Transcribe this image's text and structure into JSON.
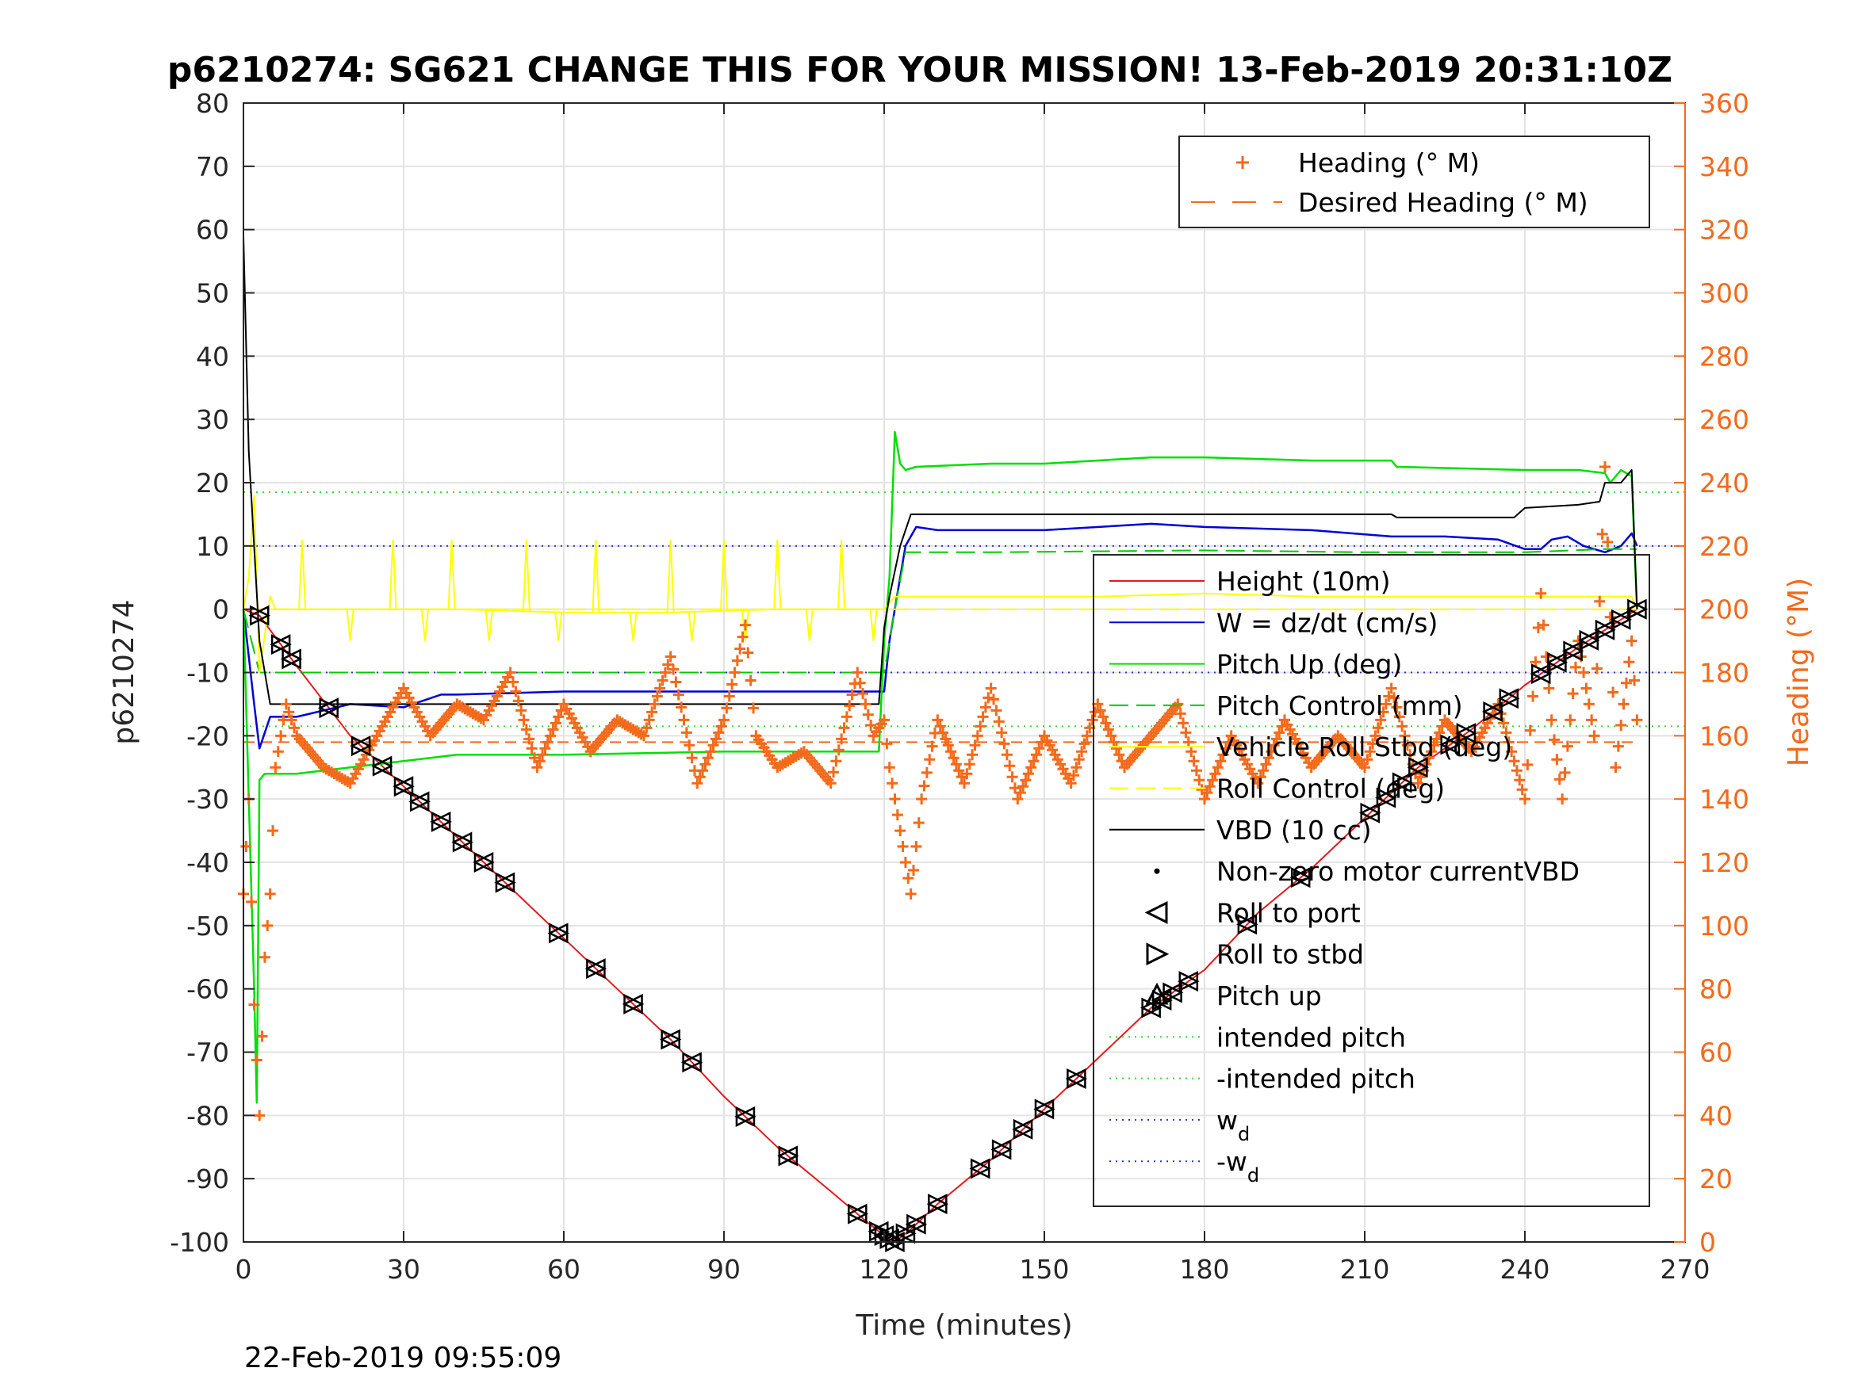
{
  "chart_data": {
    "type": "line",
    "title": "p6210274: SG621 CHANGE THIS FOR YOUR MISSION! 13-Feb-2019 20:31:10Z",
    "xlabel": "Time (minutes)",
    "ylabel_left": "p6210274",
    "ylabel_right": "Heading (°M)",
    "footer": "22-Feb-2019 09:55:09",
    "xlim": [
      0,
      270
    ],
    "ylim_left": [
      -100,
      80
    ],
    "ylim_right": [
      0,
      360
    ],
    "xticks": [
      0,
      30,
      60,
      90,
      120,
      150,
      180,
      210,
      240,
      270
    ],
    "yticks_left": [
      80,
      70,
      60,
      50,
      40,
      30,
      20,
      10,
      0,
      -10,
      -20,
      -30,
      -40,
      -50,
      -60,
      -70,
      -80,
      -90,
      -100
    ],
    "yticks_right": [
      360,
      340,
      320,
      300,
      280,
      260,
      240,
      220,
      200,
      180,
      160,
      140,
      120,
      100,
      80,
      60,
      40,
      20,
      0
    ],
    "grid": true,
    "colors": {
      "height": "#e41a1c",
      "w": "#0000d8",
      "pitch": "#00e000",
      "pitch_control": "#00cc00",
      "roll": "#ffff00",
      "vbd": "#000000",
      "heading": "#f26a1b",
      "intended": "#33dd33",
      "wd": "#3333cc"
    },
    "legend_top_right": [
      {
        "label": "Heading (° M)",
        "style": "plus",
        "color": "#f26a1b"
      },
      {
        "label": "Desired Heading (° M)",
        "style": "dash",
        "color": "#f26a1b"
      }
    ],
    "legend_main": [
      {
        "label": "Height (10m)",
        "style": "line",
        "color": "#e41a1c"
      },
      {
        "label": "W = dz/dt (cm/s)",
        "style": "line",
        "color": "#0000d8"
      },
      {
        "label": "Pitch Up (deg)",
        "style": "line",
        "color": "#00e000"
      },
      {
        "label": "Pitch Control (mm)",
        "style": "dashline",
        "color": "#00cc00"
      },
      {
        "label": "Vehicle Roll Stbd (deg)",
        "style": "line",
        "color": "#ffff00"
      },
      {
        "label": "Roll Control (deg)",
        "style": "dashline",
        "color": "#ffff00"
      },
      {
        "label": "VBD (10 cc)",
        "style": "line",
        "color": "#000000"
      },
      {
        "label": "Non-zero motor currentVBD",
        "style": "dot",
        "color": "#000000"
      },
      {
        "label": "Roll to port",
        "style": "tri-left",
        "color": "#000000"
      },
      {
        "label": "Roll to stbd",
        "style": "tri-right",
        "color": "#000000"
      },
      {
        "label": "Pitch up",
        "style": "tri-up",
        "color": "#000000"
      },
      {
        "label": "intended pitch",
        "style": "dotted",
        "color": "#33dd33"
      },
      {
        "label": "-intended pitch",
        "style": "dotted",
        "color": "#33dd33"
      },
      {
        "label": "w",
        "sub": "d",
        "style": "dotted",
        "color": "#3333cc"
      },
      {
        "label": "-w",
        "sub": "d",
        "style": "dotted",
        "color": "#3333cc"
      }
    ],
    "reference_lines": {
      "intended_pitch": 18.5,
      "neg_intended_pitch": -18.5,
      "w_d": 10,
      "neg_w_d": -10,
      "desired_heading_left_units": -21
    },
    "series": [
      {
        "name": "Height (10m)",
        "x": [
          0,
          3,
          10,
          20,
          30,
          40,
          50,
          60,
          70,
          80,
          90,
          100,
          110,
          117,
          120,
          122,
          125,
          130,
          140,
          150,
          160,
          170,
          180,
          190,
          200,
          210,
          220,
          230,
          240,
          250,
          261
        ],
        "y": [
          0,
          -1,
          -9,
          -20,
          -28,
          -36,
          -44,
          -52,
          -60,
          -68,
          -77,
          -85,
          -92,
          -97,
          -99,
          -100,
          -98,
          -94,
          -87,
          -79,
          -71,
          -63,
          -57,
          -48,
          -41,
          -33,
          -25,
          -19,
          -12,
          -6,
          0
        ]
      },
      {
        "name": "W = dz/dt (cm/s)",
        "x": [
          0,
          2,
          3,
          5,
          10,
          20,
          30,
          37,
          40,
          60,
          90,
          120,
          121,
          124,
          126,
          130,
          150,
          170,
          180,
          200,
          215,
          225,
          235,
          240,
          243,
          245,
          248,
          251,
          255,
          258,
          260,
          261
        ],
        "y": [
          0,
          -15,
          -22,
          -17,
          -17,
          -15,
          -15.5,
          -13.5,
          -13.5,
          -13,
          -13,
          -13,
          -5,
          10,
          13,
          12.5,
          12.5,
          13.5,
          13,
          12.5,
          11.5,
          11.5,
          11,
          9.5,
          9.5,
          11,
          11.5,
          10,
          9,
          10,
          12,
          10
        ]
      },
      {
        "name": "Pitch Up (deg)",
        "x": [
          0,
          2,
          2.5,
          3,
          4,
          10,
          20,
          30,
          40,
          60,
          90,
          119,
          120,
          121,
          122,
          123,
          124,
          126,
          140,
          150,
          170,
          180,
          200,
          215,
          216,
          240,
          250,
          255,
          256,
          258,
          260,
          261
        ],
        "y": [
          0,
          -60,
          -78,
          -27,
          -26,
          -26,
          -25,
          -24,
          -23,
          -23,
          -22.5,
          -22.5,
          -5,
          5,
          28,
          23,
          22,
          22.5,
          23,
          23,
          24,
          24,
          23.5,
          23.5,
          22.5,
          22,
          22,
          21.5,
          20,
          22,
          21,
          0
        ]
      },
      {
        "name": "Pitch Control (mm)",
        "x": [
          0,
          3,
          120,
          122,
          124,
          140,
          180,
          210,
          240,
          255,
          261
        ],
        "y": [
          0,
          -10,
          -10,
          0,
          9,
          9,
          9.3,
          9,
          9,
          9.5,
          9.5
        ]
      },
      {
        "name": "Vehicle Roll Stbd (deg)",
        "x": [
          0,
          1,
          2,
          3,
          5,
          6,
          10,
          20,
          40,
          60,
          80,
          100,
          120,
          122,
          140,
          160,
          180,
          200,
          220,
          240,
          260,
          261
        ],
        "y": [
          0,
          5,
          18,
          -10,
          2,
          0,
          0,
          0,
          0,
          -0.5,
          -0.5,
          0,
          0,
          2,
          2,
          2,
          2.5,
          2,
          2,
          2,
          2,
          0
        ]
      },
      {
        "name": "Roll Control (deg)",
        "x": [
          0,
          120,
          261
        ],
        "y": [
          0,
          0,
          0
        ]
      },
      {
        "name": "VBD (10 cc)",
        "x": [
          0,
          1,
          3,
          5,
          8,
          10,
          20,
          50,
          100,
          119,
          120,
          121,
          123,
          125,
          127,
          150,
          200,
          215,
          216,
          238,
          240,
          250,
          254,
          255,
          258,
          260,
          261
        ],
        "y": [
          59,
          25,
          -5,
          -15,
          -15,
          -15,
          -15,
          -15,
          -15,
          -15,
          -3,
          2,
          10,
          15,
          15,
          15,
          15,
          15,
          14.5,
          14.5,
          16,
          16.5,
          17,
          20,
          20,
          22,
          0
        ]
      },
      {
        "name": "Heading (° M)",
        "x": [
          0,
          1,
          2,
          3,
          4,
          5,
          6,
          8,
          10,
          15,
          20,
          25,
          30,
          35,
          40,
          45,
          50,
          55,
          60,
          65,
          70,
          75,
          80,
          85,
          90,
          94,
          96,
          100,
          105,
          110,
          115,
          118,
          120,
          121,
          123,
          125,
          127,
          130,
          135,
          140,
          145,
          150,
          155,
          160,
          165,
          170,
          175,
          180,
          185,
          190,
          195,
          200,
          205,
          210,
          215,
          220,
          225,
          230,
          235,
          240,
          243,
          245,
          247,
          250,
          253,
          255,
          257,
          260,
          261
        ],
        "y": [
          110,
          140,
          75,
          40,
          90,
          110,
          150,
          170,
          160,
          150,
          145,
          160,
          175,
          160,
          170,
          165,
          180,
          150,
          170,
          155,
          165,
          160,
          185,
          145,
          165,
          195,
          160,
          150,
          155,
          145,
          180,
          160,
          165,
          150,
          130,
          110,
          140,
          165,
          145,
          175,
          140,
          160,
          145,
          170,
          150,
          160,
          170,
          140,
          160,
          145,
          165,
          150,
          160,
          150,
          175,
          145,
          165,
          155,
          170,
          140,
          205,
          165,
          140,
          190,
          160,
          245,
          150,
          190,
          165
        ]
      }
    ],
    "markers": {
      "times": [
        3,
        7,
        9,
        16,
        22,
        26,
        30,
        33,
        37,
        41,
        45,
        49,
        59,
        66,
        73,
        80,
        84,
        94,
        102,
        115,
        119,
        120,
        121,
        122,
        124,
        126,
        130,
        138,
        142,
        146,
        150,
        156,
        170,
        172,
        174,
        177,
        188,
        198,
        211,
        214,
        217,
        220,
        226,
        229,
        234,
        237,
        243,
        246,
        249,
        252,
        255,
        258,
        261
      ]
    }
  }
}
